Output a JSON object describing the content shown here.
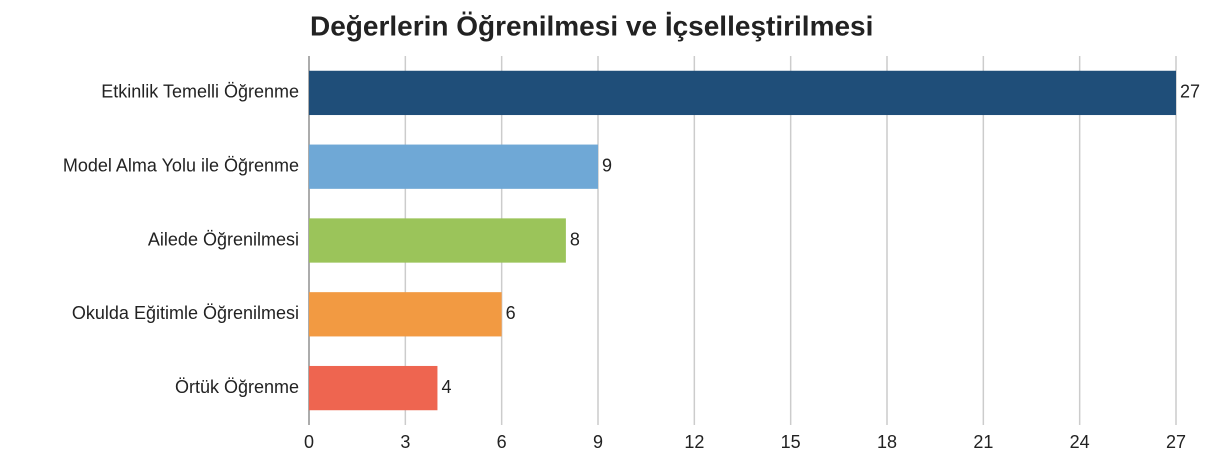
{
  "chart_data": {
    "type": "bar",
    "orientation": "horizontal",
    "title": "Değerlerin Öğrenilmesi ve İçselleştirilmesi",
    "categories": [
      "Etkinlik Temelli Öğrenme",
      "Model Alma Yolu ile Öğrenme",
      "Ailede Öğrenilmesi",
      "Okulda Eğitimle Öğrenilmesi",
      "Örtük Öğrenme"
    ],
    "values": [
      27,
      9,
      8,
      6,
      4
    ],
    "colors": [
      "#1f4e79",
      "#6fa8d6",
      "#9bc45a",
      "#f29a42",
      "#ee6550"
    ],
    "xlim": [
      0,
      27
    ],
    "xticks": [
      0,
      3,
      6,
      9,
      12,
      15,
      18,
      21,
      24,
      27
    ],
    "grid": true
  }
}
